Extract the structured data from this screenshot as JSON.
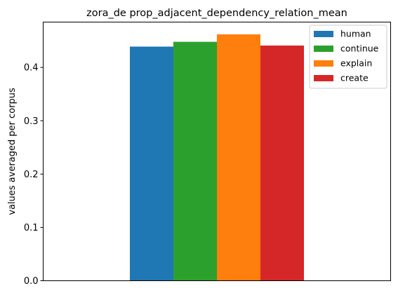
{
  "chart_data": {
    "type": "bar",
    "title": "zora_de prop_adjacent_dependency_relation_mean",
    "xlabel": "",
    "ylabel": "values averaged per corpus",
    "ylim": [
      0,
      0.485
    ],
    "yticks": [
      "0.0",
      "0.1",
      "0.2",
      "0.3",
      "0.4"
    ],
    "ytick_values": [
      0,
      0.1,
      0.2,
      0.3,
      0.4
    ],
    "categories": [
      ""
    ],
    "grid": false,
    "legend_position": "top-right",
    "series": [
      {
        "name": "human",
        "values": [
          0.439
        ],
        "color": "#1f77b4"
      },
      {
        "name": "continue",
        "values": [
          0.448
        ],
        "color": "#2ca02c"
      },
      {
        "name": "explain",
        "values": [
          0.462
        ],
        "color": "#ff7f0e"
      },
      {
        "name": "create",
        "values": [
          0.441
        ],
        "color": "#d62728"
      }
    ]
  }
}
